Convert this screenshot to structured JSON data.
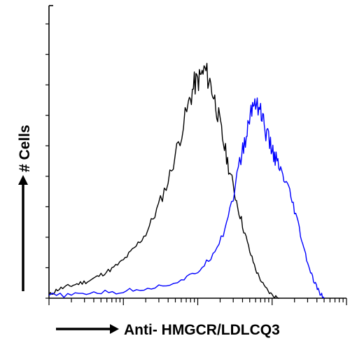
{
  "chart_data": {
    "type": "line",
    "title": "",
    "xlabel": "Anti- HMGCR/LDLCQ3",
    "ylabel": "# Cells",
    "x_scale": "log",
    "xlim": [
      1,
      10000
    ],
    "ylim": [
      0,
      100
    ],
    "grid": false,
    "legend": "none",
    "series": [
      {
        "color": "#000000",
        "x": [
          1,
          1.3,
          1.8,
          2.5,
          3.5,
          5,
          7,
          10,
          14,
          20,
          28,
          40,
          55,
          75,
          90,
          105,
          125,
          150,
          180,
          215,
          260,
          320,
          400,
          500,
          620,
          780,
          1000,
          1250
        ],
        "y": [
          1,
          3,
          4,
          5,
          6,
          8,
          10,
          13,
          17,
          22,
          30,
          40,
          53,
          66,
          73,
          75,
          78,
          73,
          65,
          55,
          45,
          35,
          25,
          16,
          9,
          4,
          1,
          0
        ]
      },
      {
        "color": "#0000ff",
        "x": [
          1,
          2,
          4,
          8,
          15,
          30,
          60,
          100,
          150,
          220,
          300,
          380,
          450,
          520,
          600,
          700,
          800,
          950,
          1100,
          1300,
          1600,
          2000,
          2500,
          3000,
          3600,
          4300,
          5000
        ],
        "y": [
          1,
          1,
          2,
          2,
          3,
          4,
          6,
          9,
          14,
          22,
          35,
          48,
          55,
          64,
          68,
          64,
          58,
          52,
          48,
          43,
          38,
          30,
          20,
          12,
          6,
          2,
          0
        ]
      }
    ]
  }
}
